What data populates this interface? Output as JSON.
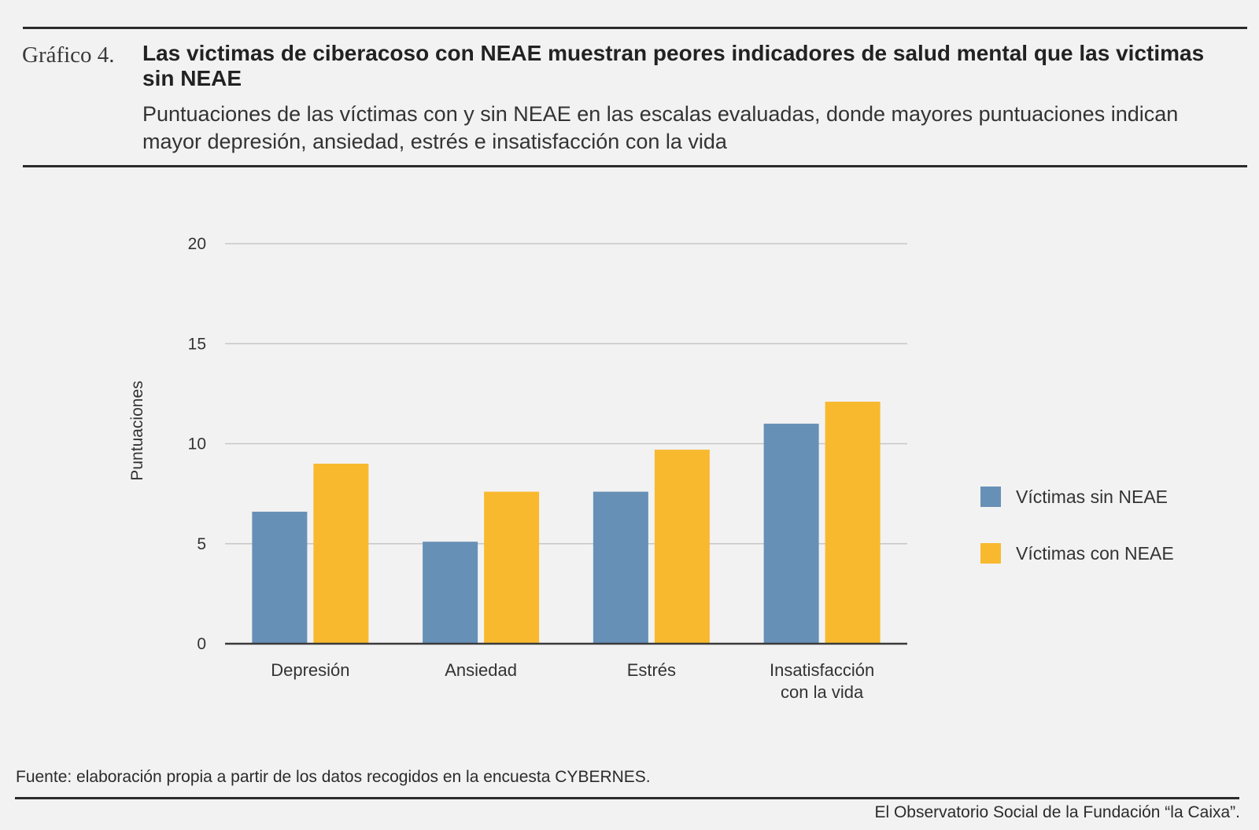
{
  "header": {
    "label": "Gráfico 4.",
    "title": "Las victimas de ciberacoso con NEAE muestran peores indicadores de salud mental que las victimas sin NEAE",
    "subtitle": "Puntuaciones de las víctimas con y sin NEAE en las escalas evaluadas, donde mayores puntuaciones indican mayor depresión, ansiedad, estrés e insatisfacción con la vida"
  },
  "footer": {
    "source": "Fuente: elaboración propia a partir de los datos recogidos en la encuesta CYBERNES.",
    "credit": "El Observatorio Social de la Fundación “la Caixa”."
  },
  "chart_data": {
    "type": "bar",
    "title": "",
    "xlabel": "",
    "ylabel": "Puntuaciones",
    "ylim": [
      0,
      20
    ],
    "yticks": [
      0,
      5,
      10,
      15,
      20
    ],
    "grid": true,
    "legend_position": "right",
    "categories": [
      [
        "Depresión"
      ],
      [
        "Ansiedad"
      ],
      [
        "Estrés"
      ],
      [
        "Insatisfacción",
        "con la vida"
      ]
    ],
    "series": [
      {
        "name": "Víctimas sin NEAE",
        "color": "#6790b7",
        "values": [
          6.6,
          5.1,
          7.6,
          11.0
        ]
      },
      {
        "name": "Víctimas con NEAE",
        "color": "#f9b92f",
        "values": [
          9.0,
          7.6,
          9.7,
          12.1
        ]
      }
    ],
    "gridline_color": "#c7c7c7",
    "axis_color": "#3a3a3a"
  }
}
